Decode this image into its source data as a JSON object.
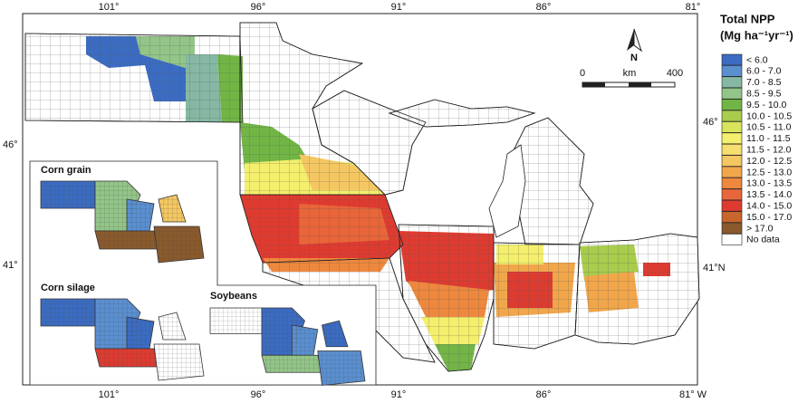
{
  "map": {
    "longitude_top": [
      "101°",
      "96°",
      "91°",
      "86°",
      "81°"
    ],
    "longitude_bottom": [
      "101°",
      "96°",
      "91°",
      "86°",
      "81° W"
    ],
    "latitude_left": [
      "46°",
      "41°"
    ],
    "latitude_right": [
      "46°",
      "41°N"
    ],
    "legend": {
      "title": "Total NPP",
      "unit": "(Mg ha⁻¹yr⁻¹)",
      "items": [
        {
          "label": "< 6.0",
          "color": "#3b6cc2"
        },
        {
          "label": "6.0 - 7.0",
          "color": "#5a8fd0"
        },
        {
          "label": "7.0 - 8.5",
          "color": "#86b8a4"
        },
        {
          "label": "8.5 - 9.5",
          "color": "#93c588"
        },
        {
          "label": "9.5 - 10.0",
          "color": "#72b546"
        },
        {
          "label": "10.0 - 10.5",
          "color": "#a8cc4c"
        },
        {
          "label": "10.5 - 11.0",
          "color": "#d9e35c"
        },
        {
          "label": "11.0 - 11.5",
          "color": "#f4ef6c"
        },
        {
          "label": "11.5 - 12.0",
          "color": "#f6df70"
        },
        {
          "label": "12.0 - 12.5",
          "color": "#f4c762"
        },
        {
          "label": "12.5 - 13.0",
          "color": "#f1a64a"
        },
        {
          "label": "13.0 - 13.5",
          "color": "#ed883e"
        },
        {
          "label": "13.5 - 14.0",
          "color": "#e8663a"
        },
        {
          "label": "14.0 - 15.0",
          "color": "#de3b30"
        },
        {
          "label": "15.0 - 17.0",
          "color": "#c8662c"
        },
        {
          "label": "> 17.0",
          "color": "#8a5a2c"
        },
        {
          "label": "No data",
          "color": "#ffffff"
        }
      ]
    },
    "scale": {
      "start": "0",
      "unit": "km",
      "end": "400"
    },
    "north": "N",
    "insets": [
      "Corn grain",
      "Corn silage",
      "Soybeans"
    ]
  }
}
